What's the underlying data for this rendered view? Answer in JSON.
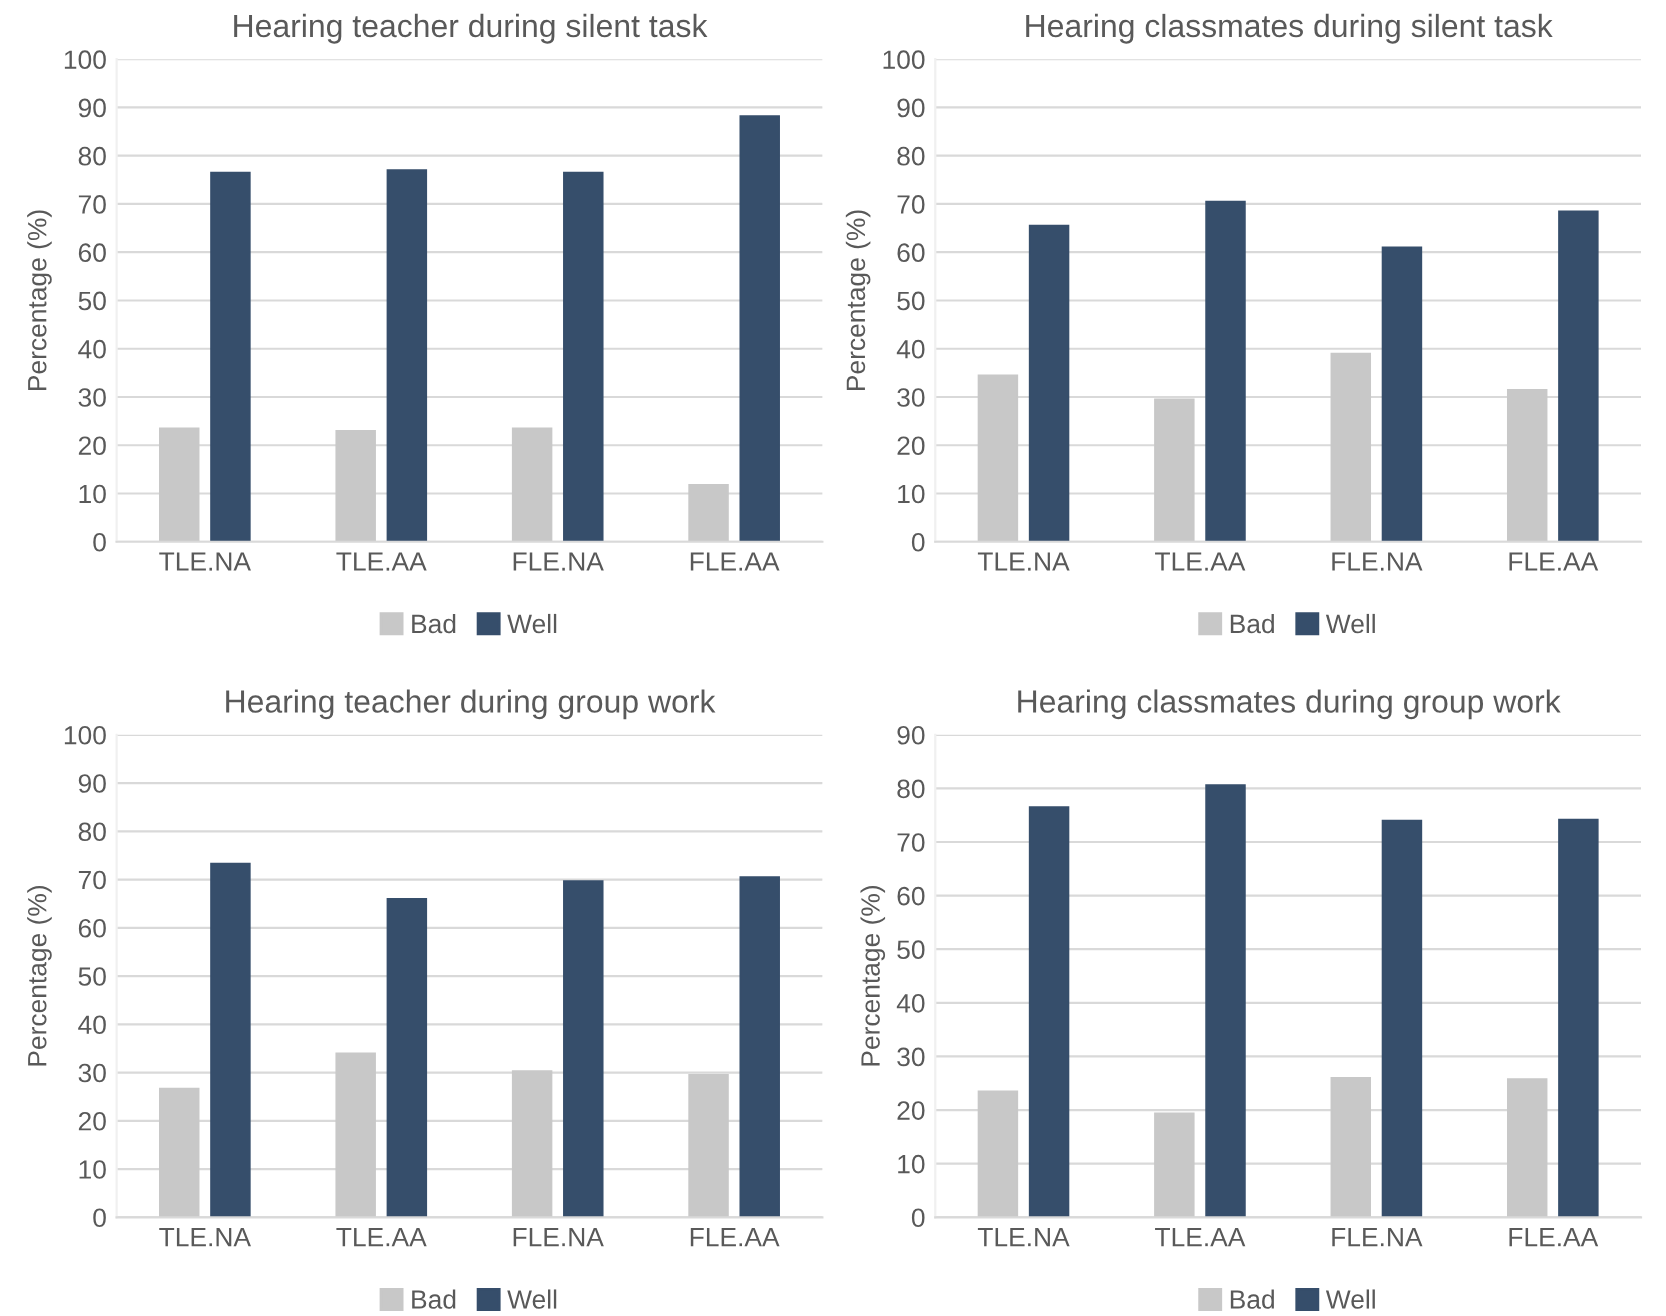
{
  "chart_data": [
    {
      "type": "bar",
      "title": "Hearing teacher during silent task",
      "ylabel": "Percentage (%)",
      "categories": [
        "TLE.NA",
        "TLE.AA",
        "FLE.NA",
        "FLE.AA"
      ],
      "ylim": [
        0,
        100
      ],
      "yticks": [
        0,
        10,
        20,
        30,
        40,
        50,
        60,
        70,
        80,
        90,
        100
      ],
      "grid": "y",
      "legend": "bottom",
      "series": [
        {
          "name": "Bad",
          "color": "#c8c8c8",
          "values": [
            23.5,
            23,
            23.5,
            11.8
          ]
        },
        {
          "name": "Well",
          "color": "#364e6b",
          "values": [
            76.5,
            77,
            76.5,
            88.2
          ]
        }
      ]
    },
    {
      "type": "bar",
      "title": "Hearing classmates during silent task",
      "ylabel": "Percentage (%)",
      "categories": [
        "TLE.NA",
        "TLE.AA",
        "FLE.NA",
        "FLE.AA"
      ],
      "ylim": [
        0,
        100
      ],
      "yticks": [
        0,
        10,
        20,
        30,
        40,
        50,
        60,
        70,
        80,
        90,
        100
      ],
      "grid": "y",
      "legend": "bottom",
      "series": [
        {
          "name": "Bad",
          "color": "#c8c8c8",
          "values": [
            34.5,
            29.5,
            39,
            31.5
          ]
        },
        {
          "name": "Well",
          "color": "#364e6b",
          "values": [
            65.5,
            70.5,
            61,
            68.5
          ]
        }
      ]
    },
    {
      "type": "bar",
      "title": "Hearing teacher during group work",
      "ylabel": "Percentage (%)",
      "categories": [
        "TLE.NA",
        "TLE.AA",
        "FLE.NA",
        "FLE.AA"
      ],
      "ylim": [
        0,
        100
      ],
      "yticks": [
        0,
        10,
        20,
        30,
        40,
        50,
        60,
        70,
        80,
        90,
        100
      ],
      "grid": "y",
      "legend": "bottom",
      "series": [
        {
          "name": "Bad",
          "color": "#c8c8c8",
          "values": [
            26.7,
            34,
            30.3,
            29.5
          ]
        },
        {
          "name": "Well",
          "color": "#364e6b",
          "values": [
            73.3,
            66,
            69.7,
            70.5
          ]
        }
      ]
    },
    {
      "type": "bar",
      "title": "Hearing classmates during group work",
      "ylabel": "Percentage (%)",
      "categories": [
        "TLE.NA",
        "TLE.AA",
        "FLE.NA",
        "FLE.AA"
      ],
      "ylim": [
        0,
        90
      ],
      "yticks": [
        0,
        10,
        20,
        30,
        40,
        50,
        60,
        70,
        80,
        90
      ],
      "grid": "y",
      "legend": "bottom",
      "series": [
        {
          "name": "Bad",
          "color": "#c8c8c8",
          "values": [
            23.5,
            19.4,
            26,
            25.8
          ]
        },
        {
          "name": "Well",
          "color": "#364e6b",
          "values": [
            76.5,
            80.6,
            74,
            74.2
          ]
        }
      ]
    }
  ]
}
